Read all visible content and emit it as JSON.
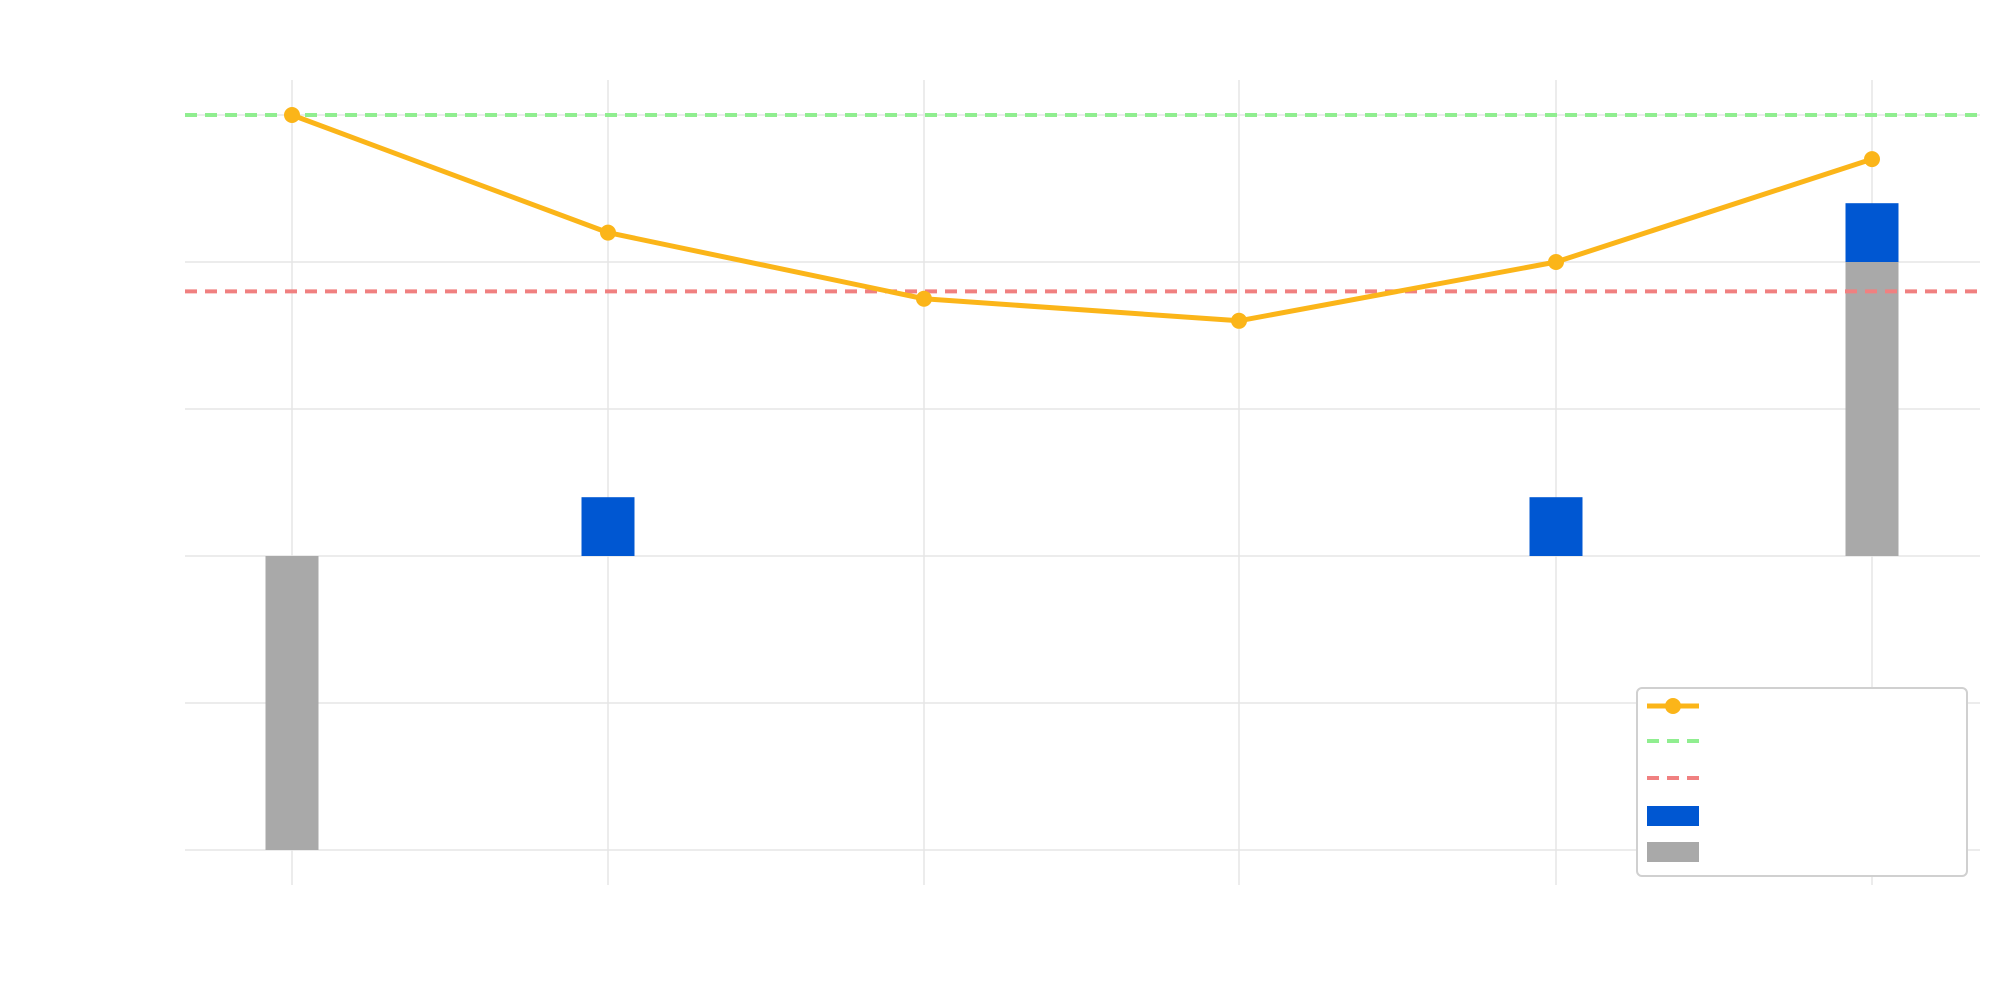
{
  "chart_data": {
    "type": "bar",
    "title": "",
    "xlabel": "",
    "ylabel": "",
    "categories": [
      "",
      "",
      "",
      "",
      "",
      ""
    ],
    "ylim": [
      -2.4,
      3.2
    ],
    "grid": true,
    "legend_position": "bottom-right",
    "series": [
      {
        "kind": "line",
        "color": "#FBB519",
        "values": [
          3.0,
          2.2,
          1.75,
          1.6,
          2.0,
          2.7
        ]
      },
      {
        "kind": "bar-positive",
        "color": "#0057D2",
        "values": [
          0.0,
          0.4,
          0.0,
          0.0,
          0.4,
          0.4
        ]
      },
      {
        "kind": "bar-base",
        "color": "#A9A9A9",
        "values": [
          -2.0,
          0.0,
          0.0,
          0.0,
          0.0,
          2.0
        ]
      }
    ],
    "reference_lines": [
      {
        "value": 3.0,
        "color": "#90EE90"
      },
      {
        "value": 1.8,
        "color": "#F08080"
      }
    ],
    "legend": {
      "entries": [
        {
          "kind": "line-marker",
          "color": "#FBB519",
          "label": ""
        },
        {
          "kind": "dashed",
          "color": "#90EE90",
          "label": ""
        },
        {
          "kind": "dashed",
          "color": "#F08080",
          "label": ""
        },
        {
          "kind": "patch",
          "color": "#0057D2",
          "label": ""
        },
        {
          "kind": "patch",
          "color": "#A9A9A9",
          "label": ""
        }
      ]
    }
  }
}
